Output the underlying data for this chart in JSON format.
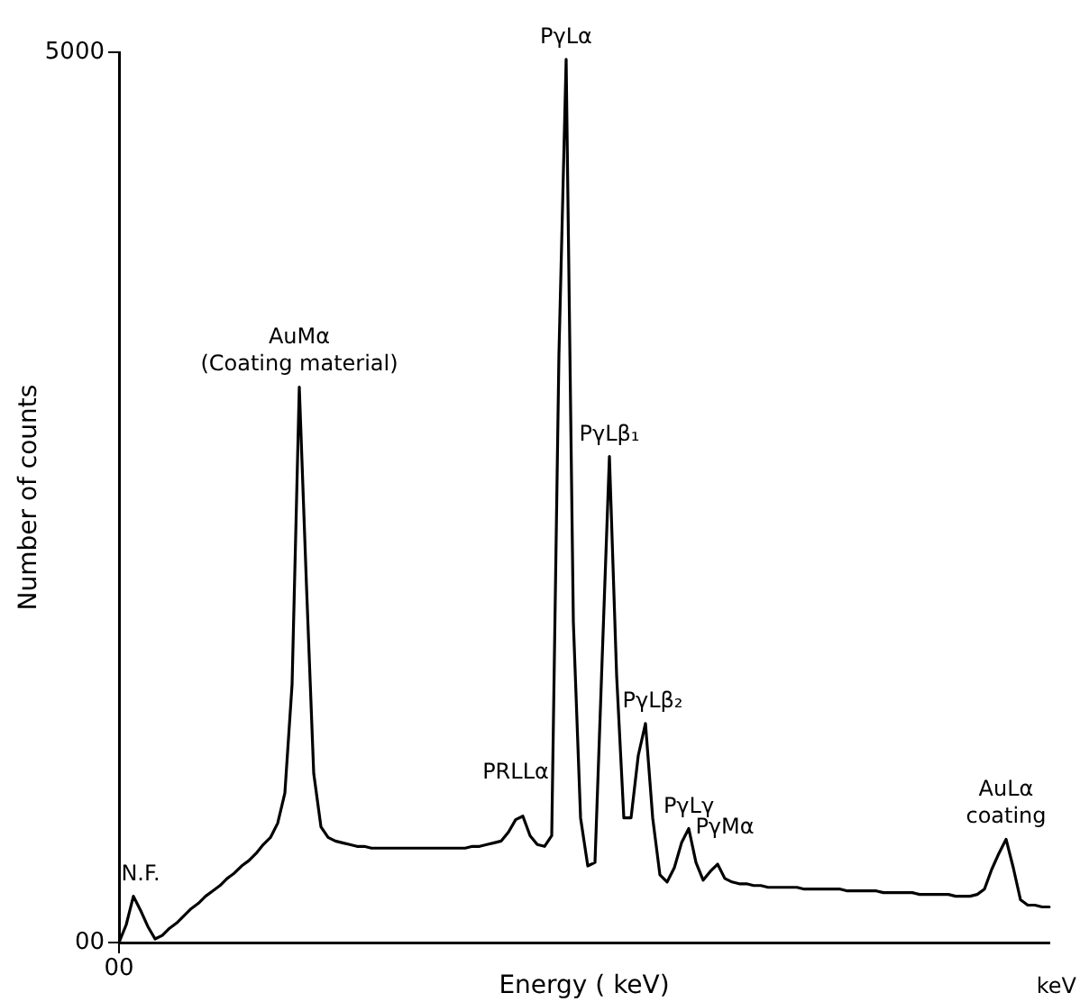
{
  "chart_data": {
    "type": "line",
    "xlabel": "Energy ( keV)",
    "ylabel": "Number of counts",
    "categories": [
      "00",
      null,
      null,
      null,
      null,
      null,
      null,
      null,
      null,
      null,
      null,
      null,
      null,
      null,
      null,
      null,
      null,
      null,
      null,
      null,
      null,
      null,
      null,
      null,
      null,
      null,
      null,
      null,
      null,
      null,
      null,
      null,
      null,
      null,
      null,
      null,
      null,
      null,
      null,
      null,
      null,
      null,
      null,
      null,
      null,
      null,
      null,
      null,
      null,
      null,
      null,
      null,
      null,
      null,
      null,
      null,
      null,
      null,
      null,
      null,
      null,
      null,
      null,
      null,
      null,
      null,
      null,
      null,
      null,
      null,
      null,
      null,
      null,
      null,
      null,
      null,
      null,
      null,
      null,
      null,
      null,
      null,
      null,
      null,
      null,
      null,
      null,
      null,
      null,
      null,
      null,
      null,
      null,
      null,
      null,
      null,
      null,
      null,
      null,
      null,
      null,
      null,
      null,
      null,
      null,
      null,
      null,
      null,
      null,
      null,
      null,
      null,
      null,
      null,
      null,
      null,
      null,
      null,
      null,
      null,
      null,
      null,
      null,
      null,
      null,
      null,
      null,
      null,
      null,
      null
    ],
    "series": [
      {
        "color": "#000000",
        "values": [
          0,
          100,
          260,
          180,
          90,
          20,
          40,
          80,
          110,
          150,
          190,
          220,
          260,
          290,
          320,
          360,
          390,
          430,
          460,
          500,
          550,
          590,
          670,
          840,
          1450,
          3120,
          2000,
          950,
          650,
          590,
          570,
          560,
          550,
          540,
          540,
          530,
          530,
          530,
          530,
          530,
          530,
          530,
          530,
          530,
          530,
          530,
          530,
          530,
          530,
          540,
          540,
          550,
          560,
          570,
          620,
          690,
          710,
          600,
          550,
          540,
          600,
          3300,
          4960,
          1800,
          700,
          430,
          450,
          1600,
          2730,
          1500,
          700,
          700,
          1050,
          1230,
          700,
          380,
          340,
          420,
          560,
          640,
          450,
          350,
          400,
          440,
          360,
          340,
          330,
          330,
          320,
          320,
          310,
          310,
          310,
          310,
          310,
          300,
          300,
          300,
          300,
          300,
          300,
          290,
          290,
          290,
          290,
          290,
          280,
          280,
          280,
          280,
          280,
          270,
          270,
          270,
          270,
          270,
          260,
          260,
          260,
          270,
          300,
          410,
          500,
          580,
          420,
          240,
          210,
          210,
          200,
          200
        ]
      }
    ],
    "ylim": [
      0,
      5000
    ],
    "yticks": [
      {
        "value": 0,
        "label": "00"
      },
      5000
    ],
    "grid": false,
    "legend": false,
    "marker": "none",
    "line_style": "solid",
    "annotations": [
      {
        "text": "N.F.",
        "y": 260
      },
      {
        "text": "AuMα\n(Coating material)",
        "y": 3120
      },
      {
        "text": "PRLLα",
        "y": 710
      },
      {
        "text": "PγLα",
        "y": 4960
      },
      {
        "text": "PγLβ₁",
        "y": 2730
      },
      {
        "text": "PγLβ₂",
        "y": 1230
      },
      {
        "text": "PγLγ",
        "y": 640
      },
      {
        "text": "PγMα",
        "y": 440
      },
      {
        "text": "AuLα\ncoating",
        "y": 580
      },
      "keV"
    ]
  }
}
